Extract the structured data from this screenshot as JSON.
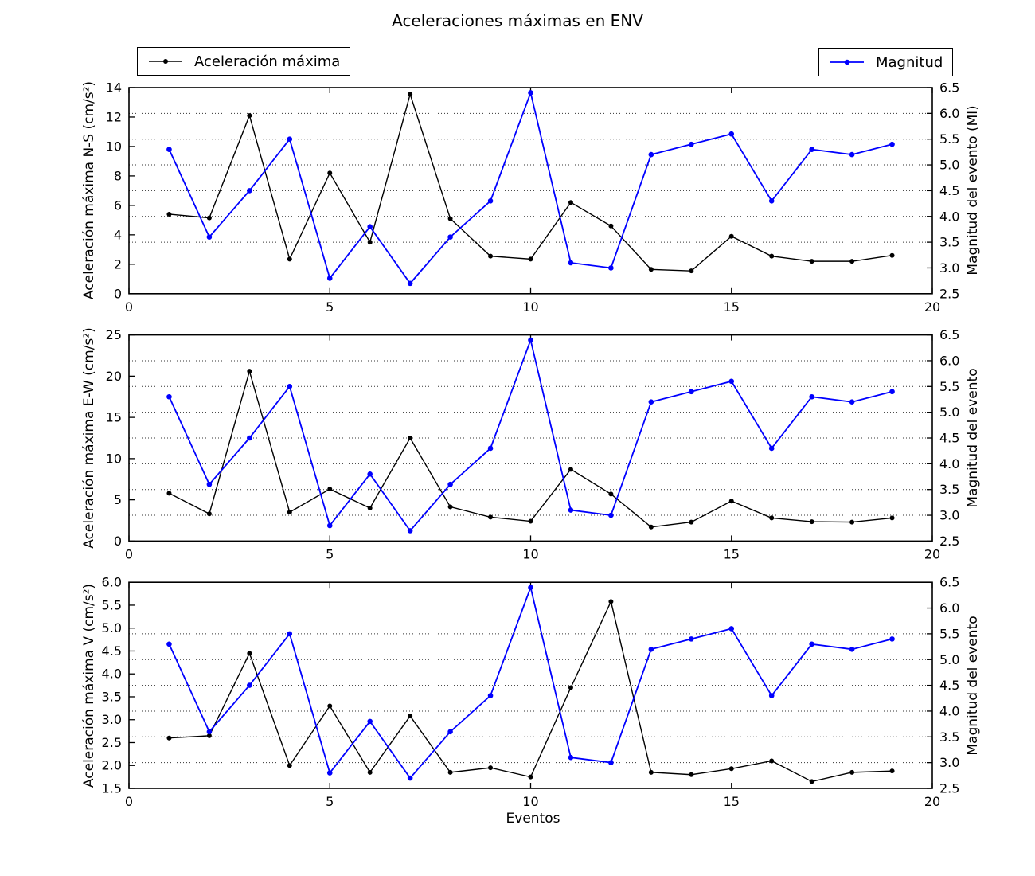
{
  "chart_data": {
    "type": "line",
    "title": "Aceleraciones máximas en ENV",
    "xlabel": "Eventos",
    "x": [
      1,
      2,
      3,
      4,
      5,
      6,
      7,
      8,
      9,
      10,
      11,
      12,
      13,
      14,
      15,
      16,
      17,
      18,
      19
    ],
    "xlim": [
      0,
      20
    ],
    "xticks": [
      0,
      5,
      10,
      15,
      20
    ],
    "xticklabels": [
      "0",
      "5",
      "10",
      "15",
      "20"
    ],
    "grid": "horizontal dotted lines at right-axis ticks",
    "grid_right_values": [
      3.0,
      3.5,
      4.0,
      4.5,
      5.0,
      5.5,
      6.0
    ],
    "colors": {
      "acceleration": "#000000",
      "magnitude": "#0000ff",
      "grid": "#000000",
      "frame": "#000000",
      "text": "#000000"
    },
    "legend": [
      {
        "label": "Aceleración máxima",
        "color": "#000000",
        "position": "top-left"
      },
      {
        "label": "Magnitud",
        "color": "#0000ff",
        "position": "top-right"
      }
    ],
    "magnitude_series": {
      "name": "Magnitud",
      "values": [
        5.3,
        3.6,
        4.5,
        5.5,
        2.8,
        3.8,
        2.7,
        3.6,
        4.3,
        6.4,
        3.1,
        3.0,
        5.2,
        5.4,
        5.6,
        4.3,
        5.3,
        5.2,
        5.4
      ],
      "ylim": [
        2.5,
        6.5
      ],
      "yticks": [
        2.5,
        3.0,
        3.5,
        4.0,
        4.5,
        5.0,
        5.5,
        6.0,
        6.5
      ],
      "yticklabels": [
        "2.5",
        "3.0",
        "3.5",
        "4.0",
        "4.5",
        "5.0",
        "5.5",
        "6.0",
        "6.5"
      ]
    },
    "subplots": [
      {
        "ylabel": "Aceleración máxima N-S (cm/s²)",
        "right_ylabel": "Magnitud del evento (Ml)",
        "ylim": [
          0,
          14
        ],
        "yticks": [
          0,
          2,
          4,
          6,
          8,
          10,
          12,
          14
        ],
        "yticklabels": [
          "0",
          "2",
          "4",
          "6",
          "8",
          "10",
          "12",
          "14"
        ],
        "acceleration": [
          5.4,
          5.15,
          12.1,
          2.35,
          8.2,
          3.5,
          13.55,
          5.1,
          2.55,
          2.35,
          6.2,
          4.6,
          1.65,
          1.55,
          3.9,
          2.55,
          2.2,
          2.2,
          2.6
        ]
      },
      {
        "ylabel": "Aceleración máxima E-W (cm/s²)",
        "right_ylabel": "Magnitud del evento",
        "ylim": [
          0,
          25
        ],
        "yticks": [
          0,
          5,
          10,
          15,
          20,
          25
        ],
        "yticklabels": [
          "0",
          "5",
          "10",
          "15",
          "20",
          "25"
        ],
        "acceleration": [
          5.8,
          3.3,
          20.6,
          3.5,
          6.3,
          4.0,
          12.5,
          4.15,
          2.9,
          2.4,
          8.7,
          5.7,
          1.7,
          2.3,
          4.85,
          2.8,
          2.35,
          2.3,
          2.8
        ]
      },
      {
        "ylabel": "Aceleración máxima V (cm/s²)",
        "right_ylabel": "Magnitud del evento",
        "ylim": [
          1.5,
          6.0
        ],
        "yticks": [
          1.5,
          2.0,
          2.5,
          3.0,
          3.5,
          4.0,
          4.5,
          5.0,
          5.5,
          6.0
        ],
        "yticklabels": [
          "1.5",
          "2.0",
          "2.5",
          "3.0",
          "3.5",
          "4.0",
          "4.5",
          "5.0",
          "5.5",
          "6.0"
        ],
        "acceleration": [
          2.6,
          2.65,
          4.45,
          2.0,
          3.3,
          1.85,
          3.08,
          1.85,
          1.95,
          1.75,
          3.7,
          5.58,
          1.85,
          1.8,
          1.93,
          2.1,
          1.65,
          1.85,
          1.88
        ]
      }
    ]
  }
}
